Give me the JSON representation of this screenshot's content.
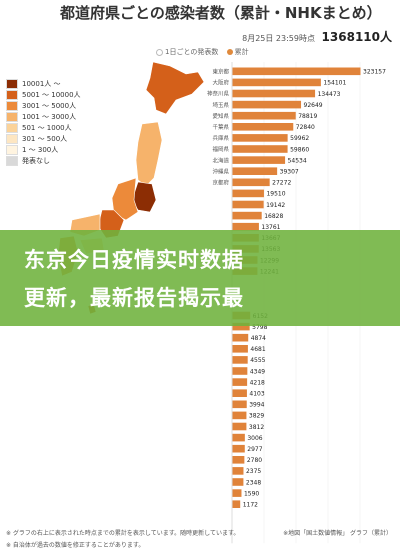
{
  "header": {
    "title": "都道府県ごとの感染者数（累計・NHKまとめ）",
    "datetime": "8月25日 23:59時点",
    "total_label": "1368110人",
    "toggle_daily": "1日ごとの発表数",
    "toggle_cumulative": "累計"
  },
  "legend": {
    "items": [
      {
        "label": "10001人 〜",
        "color": "#8c2d04"
      },
      {
        "label": "5001 〜 10000人",
        "color": "#d4601a"
      },
      {
        "label": "3001 〜 5000人",
        "color": "#ec8a3a"
      },
      {
        "label": "1001 〜 3000人",
        "color": "#f6b36b"
      },
      {
        "label": "501 〜 1000人",
        "color": "#fbd39a"
      },
      {
        "label": "301 〜 500人",
        "color": "#fde6c2"
      },
      {
        "label": "1 〜 300人",
        "color": "#fff4e0"
      },
      {
        "label": "発表なし",
        "color": "#d9d9d9"
      }
    ]
  },
  "banner": {
    "line1": "东京今日疫情实时数据",
    "line2": "更新，最新报告揭示最"
  },
  "notes": {
    "line1": "※ グラフの右上に表示された時点までの累計を表示しています。随時更新しています。",
    "line2": "※ 自治体が過去の数値を修正することがあります。",
    "map_credit": "※地図「国土数値情報」 グラフ（累計）"
  },
  "chart_data": {
    "type": "bar",
    "orientation": "horizontal",
    "bar_color": "#e0833a",
    "categories": [
      "東京都",
      "大阪府",
      "神奈川県",
      "埼玉県",
      "愛知県",
      "千葉県",
      "兵庫県",
      "福岡県",
      "北海道",
      "沖縄県",
      "京都府",
      "",
      "",
      "",
      "",
      "",
      "",
      "",
      "",
      "",
      "",
      "",
      "",
      "",
      "",
      "",
      "",
      "",
      "",
      "",
      "",
      "",
      "",
      "",
      "",
      "",
      "",
      "",
      "",
      "",
      "",
      "",
      ""
    ],
    "values": [
      323157,
      154101,
      134473,
      92649,
      78819,
      72840,
      59962,
      59860,
      54534,
      39307,
      27272,
      19510,
      19142,
      16828,
      13761,
      13667,
      13563,
      12299,
      12241,
      null,
      null,
      null,
      6152,
      5798,
      4874,
      4681,
      4555,
      4349,
      4218,
      4103,
      3994,
      3829,
      3812,
      3006,
      2977,
      2780,
      2375,
      2348,
      1590,
      1172,
      null,
      null,
      null
    ],
    "value_labels": [
      "323157",
      "154101",
      "134473",
      "92649",
      "78819",
      "72840",
      "59962",
      "59860",
      "54534",
      "39307",
      "27272",
      "19510",
      "19142",
      "16828",
      "13761",
      "13667",
      "13563",
      "12299",
      "12241",
      "",
      "",
      "",
      "6152",
      "5798",
      "4874",
      "4681",
      "4555",
      "4349",
      "4218",
      "4103",
      "3994",
      "3829",
      "3812",
      "3006",
      "2977",
      "2780",
      "2375",
      "2348",
      "1590",
      "1172",
      "",
      "",
      ""
    ],
    "grid": true
  }
}
